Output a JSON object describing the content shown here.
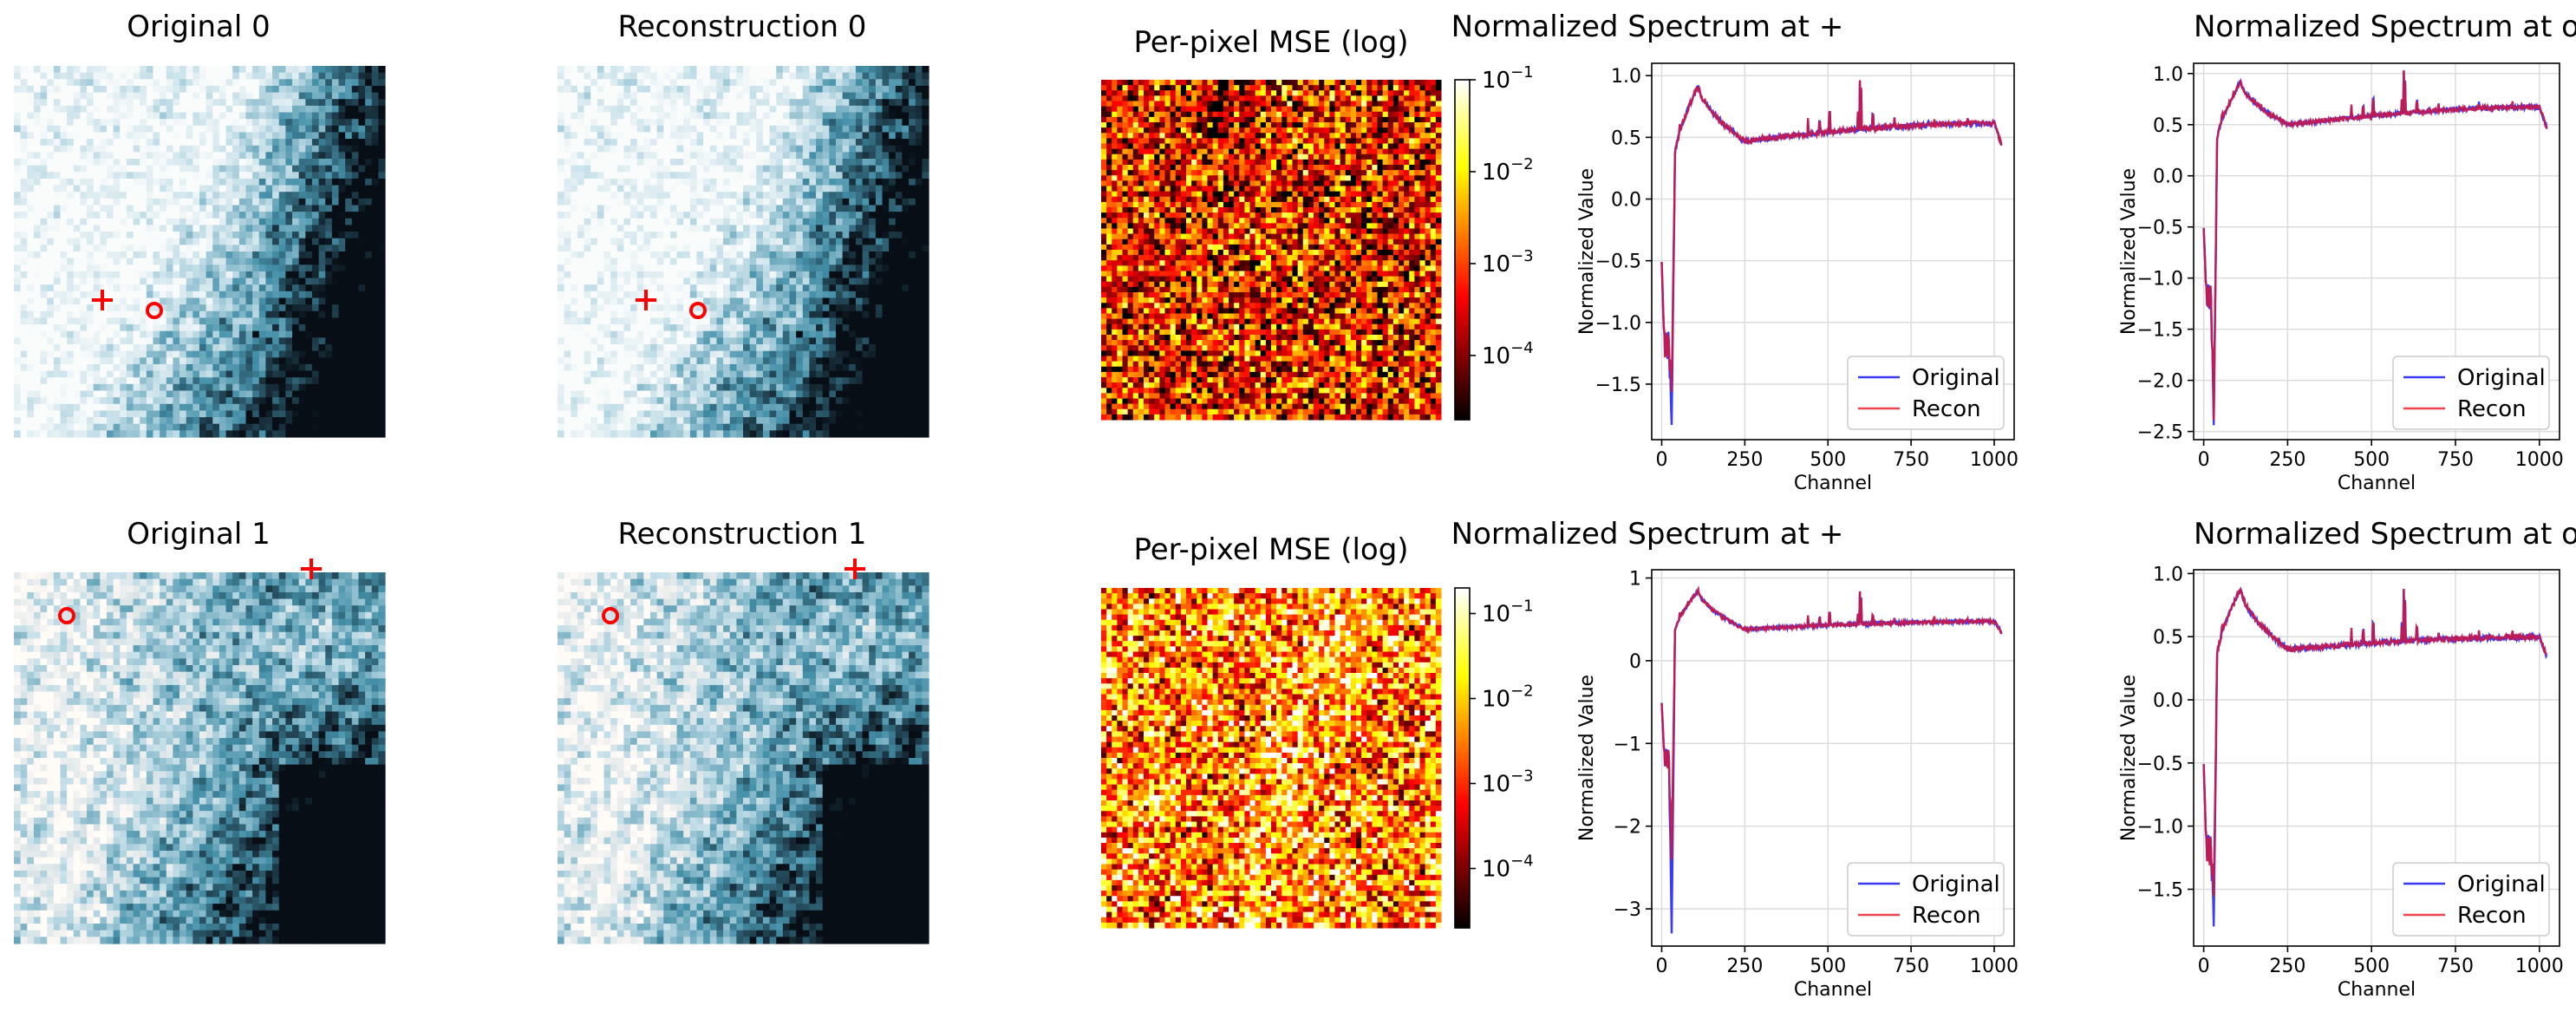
{
  "colors": {
    "original_line": "#3b3bf5",
    "recon_line": "#f0454f",
    "overlap_line": "#c21a50",
    "marker": "#ff0000"
  },
  "icons": {
    "plus_marker": "plus-marker-icon",
    "circle_marker": "circle-marker-icon"
  },
  "images": [
    {
      "title": "Original 0",
      "variant": "original",
      "seed": 11,
      "scene": 0
    },
    {
      "title": "Reconstruction 0",
      "variant": "reconstruction",
      "seed": 11,
      "scene": 0
    },
    {
      "title": "Original 1",
      "variant": "original",
      "seed": 23,
      "scene": 1
    },
    {
      "title": "Reconstruction 1",
      "variant": "reconstruction",
      "seed": 23,
      "scene": 1
    }
  ],
  "mse_maps": [
    {
      "title": "Per-pixel MSE (log)",
      "colormap": "hot",
      "scale": "log",
      "vmin": 2e-05,
      "vmax": 0.1,
      "colorbar_ticks": [
        {
          "base": "10",
          "exp": "−1",
          "value": 0.1
        },
        {
          "base": "10",
          "exp": "−2",
          "value": 0.01
        },
        {
          "base": "10",
          "exp": "−3",
          "value": 0.001
        },
        {
          "base": "10",
          "exp": "−4",
          "value": 0.0001
        }
      ]
    },
    {
      "title": "Per-pixel MSE (log)",
      "colormap": "hot",
      "scale": "log",
      "vmin": 2e-05,
      "vmax": 0.2,
      "colorbar_ticks": [
        {
          "base": "10",
          "exp": "−1",
          "value": 0.1
        },
        {
          "base": "10",
          "exp": "−2",
          "value": 0.01
        },
        {
          "base": "10",
          "exp": "−3",
          "value": 0.001
        },
        {
          "base": "10",
          "exp": "−4",
          "value": 0.0001
        }
      ]
    }
  ],
  "chart_data": [
    {
      "type": "line",
      "title": "Normalized Spectrum at +",
      "xlabel": "Channel",
      "ylabel": "Normalized Value",
      "xlim": [
        -30,
        1060
      ],
      "ylim": [
        -1.95,
        1.1
      ],
      "xticks": [
        0,
        250,
        500,
        750,
        1000
      ],
      "yticks": [
        -1.5,
        -1.0,
        -0.5,
        0.0,
        0.5,
        1.0
      ],
      "ytick_labels": [
        "−1.5",
        "−1.0",
        "−0.5",
        "0.0",
        "0.5",
        "1.0"
      ],
      "series": [
        {
          "name": "Original"
        },
        {
          "name": "Recon"
        }
      ],
      "features": {
        "start": -0.5,
        "dip_min_orig": -1.85,
        "dip_min_recon": -1.55,
        "peak": 0.92,
        "peak_ch": 110,
        "trough": 0.47,
        "trough_ch": 250,
        "end": 0.62,
        "end_ch": 1000,
        "last": 0.42
      },
      "legend": "lower-right"
    },
    {
      "type": "line",
      "title": "Normalized Spectrum at o",
      "xlabel": "Channel",
      "ylabel": "Normalized Value",
      "xlim": [
        -30,
        1060
      ],
      "ylim": [
        -2.58,
        1.1
      ],
      "xticks": [
        0,
        250,
        500,
        750,
        1000
      ],
      "yticks": [
        -2.5,
        -2.0,
        -1.5,
        -1.0,
        -0.5,
        0.0,
        0.5,
        1.0
      ],
      "ytick_labels": [
        "−2.5",
        "−2.0",
        "−1.5",
        "−1.0",
        "−0.5",
        "0.0",
        "0.5",
        "1.0"
      ],
      "series": [
        {
          "name": "Original"
        },
        {
          "name": "Recon"
        }
      ],
      "features": {
        "start": -0.5,
        "dip_min_orig": -2.42,
        "dip_min_recon": -2.38,
        "peak": 0.92,
        "peak_ch": 110,
        "trough": 0.5,
        "trough_ch": 250,
        "end": 0.68,
        "end_ch": 1000,
        "last": 0.45
      },
      "legend": "lower-right"
    },
    {
      "type": "line",
      "title": "Normalized Spectrum at +",
      "xlabel": "Channel",
      "ylabel": "Normalized Value",
      "xlim": [
        -30,
        1060
      ],
      "ylim": [
        -3.45,
        1.1
      ],
      "xticks": [
        0,
        250,
        500,
        750,
        1000
      ],
      "yticks": [
        -3,
        -2,
        -1,
        0,
        1
      ],
      "ytick_labels": [
        "−3",
        "−2",
        "−1",
        "0",
        "1"
      ],
      "series": [
        {
          "name": "Original"
        },
        {
          "name": "Recon"
        }
      ],
      "features": {
        "start": -0.5,
        "dip_min_orig": -3.28,
        "dip_min_recon": -2.4,
        "peak": 0.85,
        "peak_ch": 110,
        "trough": 0.38,
        "trough_ch": 250,
        "end": 0.48,
        "end_ch": 1000,
        "last": 0.33
      },
      "legend": "lower-right"
    },
    {
      "type": "line",
      "title": "Normalized Spectrum at o",
      "xlabel": "Channel",
      "ylabel": "Normalized Value",
      "xlim": [
        -30,
        1060
      ],
      "ylim": [
        -1.95,
        1.03
      ],
      "xticks": [
        0,
        250,
        500,
        750,
        1000
      ],
      "yticks": [
        -1.5,
        -1.0,
        -0.5,
        0.0,
        0.5,
        1.0
      ],
      "ytick_labels": [
        "−1.5",
        "−1.0",
        "−0.5",
        "0.0",
        "0.5",
        "1.0"
      ],
      "series": [
        {
          "name": "Original"
        },
        {
          "name": "Recon"
        }
      ],
      "features": {
        "start": -0.5,
        "dip_min_orig": -1.78,
        "dip_min_recon": -1.55,
        "peak": 0.88,
        "peak_ch": 110,
        "trough": 0.4,
        "trough_ch": 250,
        "end": 0.5,
        "end_ch": 1000,
        "last": 0.33
      },
      "legend": "lower-right"
    }
  ]
}
